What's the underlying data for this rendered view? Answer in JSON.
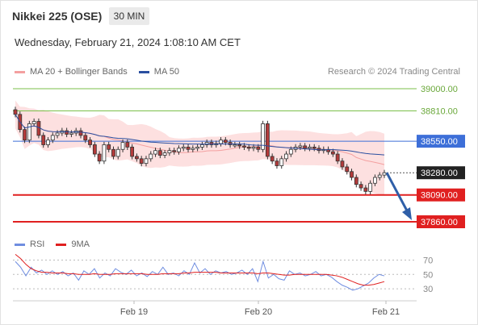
{
  "header": {
    "title": "Nikkei 225 (OSE)",
    "timeframe": "30 MIN",
    "datetime": "Wednesday, February 21, 2024 1:08:10 AM CET"
  },
  "legend": {
    "items": [
      {
        "label": "MA 20 + Bollinger Bands",
        "color": "#f4a0a0"
      },
      {
        "label": "MA 50",
        "color": "#2a4fa0"
      }
    ],
    "credit": "Research © 2024 Trading Central"
  },
  "rsi_legend": {
    "items": [
      {
        "label": "RSI",
        "color": "#6f8de0"
      },
      {
        "label": "9MA",
        "color": "#e02020"
      }
    ]
  },
  "colors": {
    "green_level": "#7bbf4a",
    "blue_level": "#3d6fd8",
    "red_level": "#e02020",
    "current": "#222222",
    "candle_up": "#ffffff",
    "candle_down": "#b33a3a",
    "band_fill": "#fde0e0",
    "arrow": "#2f5fa8"
  },
  "chart_data": {
    "type": "candlestick",
    "x_ticks": [
      "Feb 19",
      "Feb 20",
      "Feb 21"
    ],
    "levels": [
      {
        "value": 39000.0,
        "label": "39000.00",
        "kind": "resistance-2"
      },
      {
        "value": 38810.0,
        "label": "38810.00",
        "kind": "resistance-1"
      },
      {
        "value": 38550.0,
        "label": "38550.00",
        "kind": "pivot"
      },
      {
        "value": 38280.0,
        "label": "38280.00",
        "kind": "current"
      },
      {
        "value": 38090.0,
        "label": "38090.00",
        "kind": "support-1"
      },
      {
        "value": 37860.0,
        "label": "37860.00",
        "kind": "support-2"
      }
    ],
    "closes": [
      38780,
      38650,
      38560,
      38700,
      38720,
      38600,
      38520,
      38560,
      38600,
      38620,
      38640,
      38610,
      38620,
      38640,
      38600,
      38560,
      38520,
      38440,
      38380,
      38520,
      38480,
      38420,
      38480,
      38540,
      38500,
      38420,
      38400,
      38360,
      38400,
      38440,
      38470,
      38430,
      38450,
      38470,
      38460,
      38490,
      38500,
      38480,
      38490,
      38500,
      38520,
      38540,
      38520,
      38530,
      38560,
      38540,
      38520,
      38520,
      38510,
      38500,
      38490,
      38500,
      38480,
      38700,
      38420,
      38380,
      38340,
      38400,
      38440,
      38480,
      38500,
      38510,
      38490,
      38500,
      38490,
      38470,
      38480,
      38460,
      38440,
      38380,
      38330,
      38290,
      38240,
      38180,
      38150,
      38120,
      38190,
      38240,
      38260,
      38280
    ],
    "rsi": {
      "ticks": [
        70,
        50,
        30
      ],
      "rsi_values": [
        68,
        60,
        48,
        60,
        52,
        56,
        50,
        55,
        50,
        54,
        48,
        52,
        42,
        55,
        50,
        58,
        45,
        52,
        48,
        58,
        53,
        50,
        56,
        48,
        52,
        47,
        54,
        50,
        60,
        50,
        52,
        48,
        55,
        50,
        66,
        52,
        58,
        50,
        55,
        52,
        54,
        50,
        52,
        56,
        50,
        58,
        40,
        68,
        45,
        50,
        44,
        42,
        55,
        50,
        52,
        48,
        50,
        54,
        48,
        50,
        46,
        40,
        35,
        32,
        28,
        30,
        34,
        38,
        45,
        50,
        48
      ],
      "ma_values": [
        78,
        72,
        64,
        58,
        55,
        53,
        53,
        52,
        52,
        52,
        51,
        51,
        50,
        50,
        50,
        51,
        50,
        50,
        50,
        51,
        51,
        51,
        51,
        51,
        51,
        50,
        50,
        50,
        51,
        51,
        51,
        51,
        52,
        52,
        53,
        53,
        53,
        53,
        53,
        52,
        52,
        52,
        52,
        52,
        52,
        52,
        51,
        52,
        52,
        51,
        50,
        49,
        49,
        50,
        50,
        50,
        50,
        50,
        50,
        50,
        49,
        48,
        46,
        43,
        40,
        37,
        35,
        35,
        36,
        38,
        40
      ]
    }
  }
}
